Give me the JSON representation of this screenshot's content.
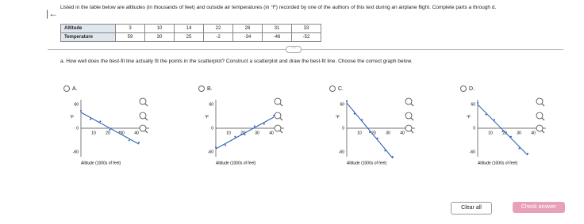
{
  "header": {
    "intro": "Listed in the table below are altitudes (in thousands of feet) and outside air temperatures (in °F) recorded by one of the authors of this text during an airplane flight. Complete parts a through d."
  },
  "table": {
    "rows": [
      [
        "Altitude",
        "3",
        "10",
        "14",
        "22",
        "28",
        "31",
        "33"
      ],
      [
        "Temperature",
        "59",
        "30",
        "25",
        "-2",
        "-34",
        "-46",
        "-52"
      ]
    ]
  },
  "question": "a. How well does the best-fit line actually fit the points in the scatterplot? Construct a scatterplot and draw the best-fit line. Choose the correct graph below.",
  "options": [
    {
      "letter": "A.",
      "ylabel": "°F",
      "yticks": [
        "60",
        "0",
        "-60"
      ],
      "xticks": [
        "10",
        "20",
        "30",
        "40"
      ],
      "xlabel": "Altitude (1000s of feet)"
    },
    {
      "letter": "B.",
      "ylabel": "°F",
      "yticks": [
        "60",
        "0",
        "-60"
      ],
      "xticks": [
        "10",
        "20",
        "30",
        "40"
      ],
      "xlabel": "Altitude (1000s of feet)"
    },
    {
      "letter": "C.",
      "ylabel": "°F",
      "yticks": [
        "60",
        "0",
        "-60"
      ],
      "xticks": [
        "10",
        "20",
        "30",
        "40"
      ],
      "xlabel": "Altitude (1000s of feet)"
    },
    {
      "letter": "D.",
      "ylabel": "°F",
      "yticks": [
        "60",
        "0",
        "-60"
      ],
      "xticks": [
        "10",
        "20",
        "30",
        "40"
      ],
      "xlabel": "Altitude (1000s of feet)"
    }
  ],
  "buttons": {
    "clear": "Clear all",
    "check": "Check answer"
  }
}
